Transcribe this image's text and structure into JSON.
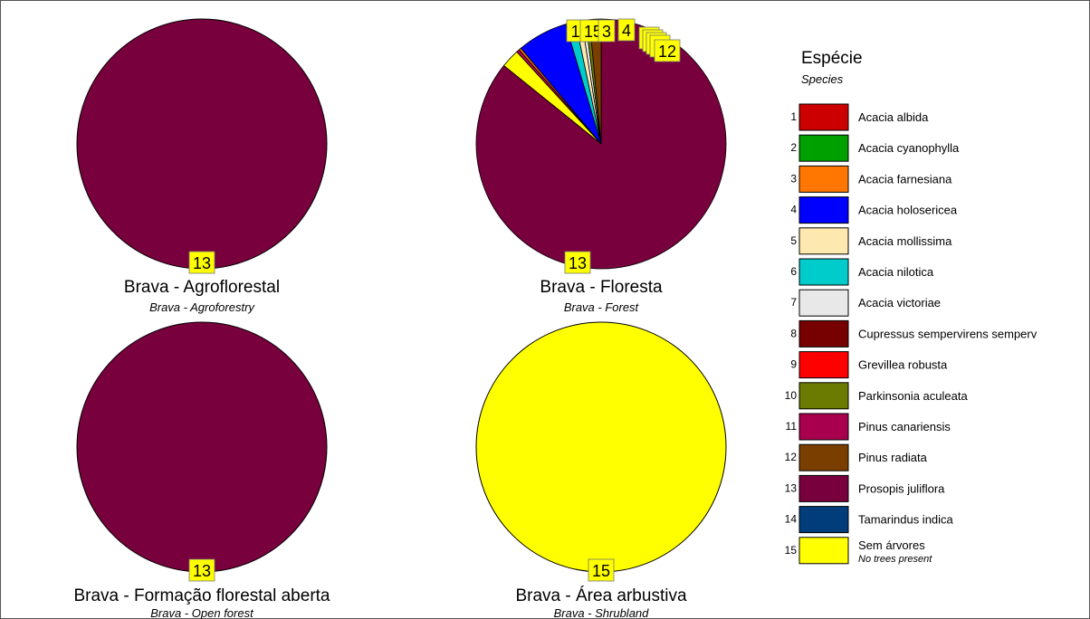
{
  "legend": {
    "title": "Espécie",
    "subtitle": "Species",
    "items": [
      {
        "code": "1",
        "name": "Acacia albida",
        "color": "#cc0000"
      },
      {
        "code": "2",
        "name": "Acacia cyanophylla",
        "color": "#00a000"
      },
      {
        "code": "3",
        "name": "Acacia farnesiana",
        "color": "#ff7700"
      },
      {
        "code": "4",
        "name": "Acacia holosericea",
        "color": "#0000ff"
      },
      {
        "code": "5",
        "name": "Acacia mollissima",
        "color": "#fde8b0"
      },
      {
        "code": "6",
        "name": "Acacia nilotica",
        "color": "#00cccc"
      },
      {
        "code": "7",
        "name": "Acacia victoriae",
        "color": "#e8e8e8"
      },
      {
        "code": "8",
        "name": "Cupressus sempervirens semperv",
        "color": "#770000"
      },
      {
        "code": "9",
        "name": "Grevillea robusta",
        "color": "#ff0000"
      },
      {
        "code": "10",
        "name": "Parkinsonia aculeata",
        "color": "#6b7a00"
      },
      {
        "code": "11",
        "name": "Pinus canariensis",
        "color": "#a8004f"
      },
      {
        "code": "12",
        "name": "Pinus radiata",
        "color": "#7a3e00"
      },
      {
        "code": "13",
        "name": "Prosopis juliflora",
        "color": "#78003c"
      },
      {
        "code": "14",
        "name": "Tamarindus indica",
        "color": "#003d7a"
      },
      {
        "code": "15",
        "name": "Sem árvores",
        "color": "#ffff00",
        "note": "No trees present"
      }
    ]
  },
  "chart_data": [
    {
      "type": "pie",
      "title": "Brava - Agroflorestal",
      "subtitle": "Brava - Agroforestry",
      "slices": [
        {
          "label": "13",
          "value": 100
        }
      ],
      "labels": [
        "13"
      ]
    },
    {
      "type": "pie",
      "title": "Brava - Floresta",
      "subtitle": "Brava - Forest",
      "slices": [
        {
          "label": "13",
          "value": 85.8
        },
        {
          "label": "15",
          "value": 2.4
        },
        {
          "label": "11",
          "value": 0.4
        },
        {
          "label": "3",
          "value": 0.3
        },
        {
          "label": "4",
          "value": 6.5
        },
        {
          "label": "6",
          "value": 1.3
        },
        {
          "label": "5",
          "value": 0.8
        },
        {
          "label": "7",
          "value": 0.5
        },
        {
          "label": "10",
          "value": 0.5
        },
        {
          "label": "12",
          "value": 1.5
        }
      ],
      "labels": [
        "11",
        "15",
        "3",
        "4",
        "12",
        "13"
      ]
    },
    {
      "type": "pie",
      "title": "Brava - Formação florestal aberta",
      "subtitle": "Brava - Open forest",
      "slices": [
        {
          "label": "13",
          "value": 100
        }
      ],
      "labels": [
        "13"
      ]
    },
    {
      "type": "pie",
      "title": "Brava - Área arbustiva",
      "subtitle": "Brava - Shrubland",
      "slices": [
        {
          "label": "15",
          "value": 100
        }
      ],
      "labels": [
        "15"
      ]
    }
  ]
}
